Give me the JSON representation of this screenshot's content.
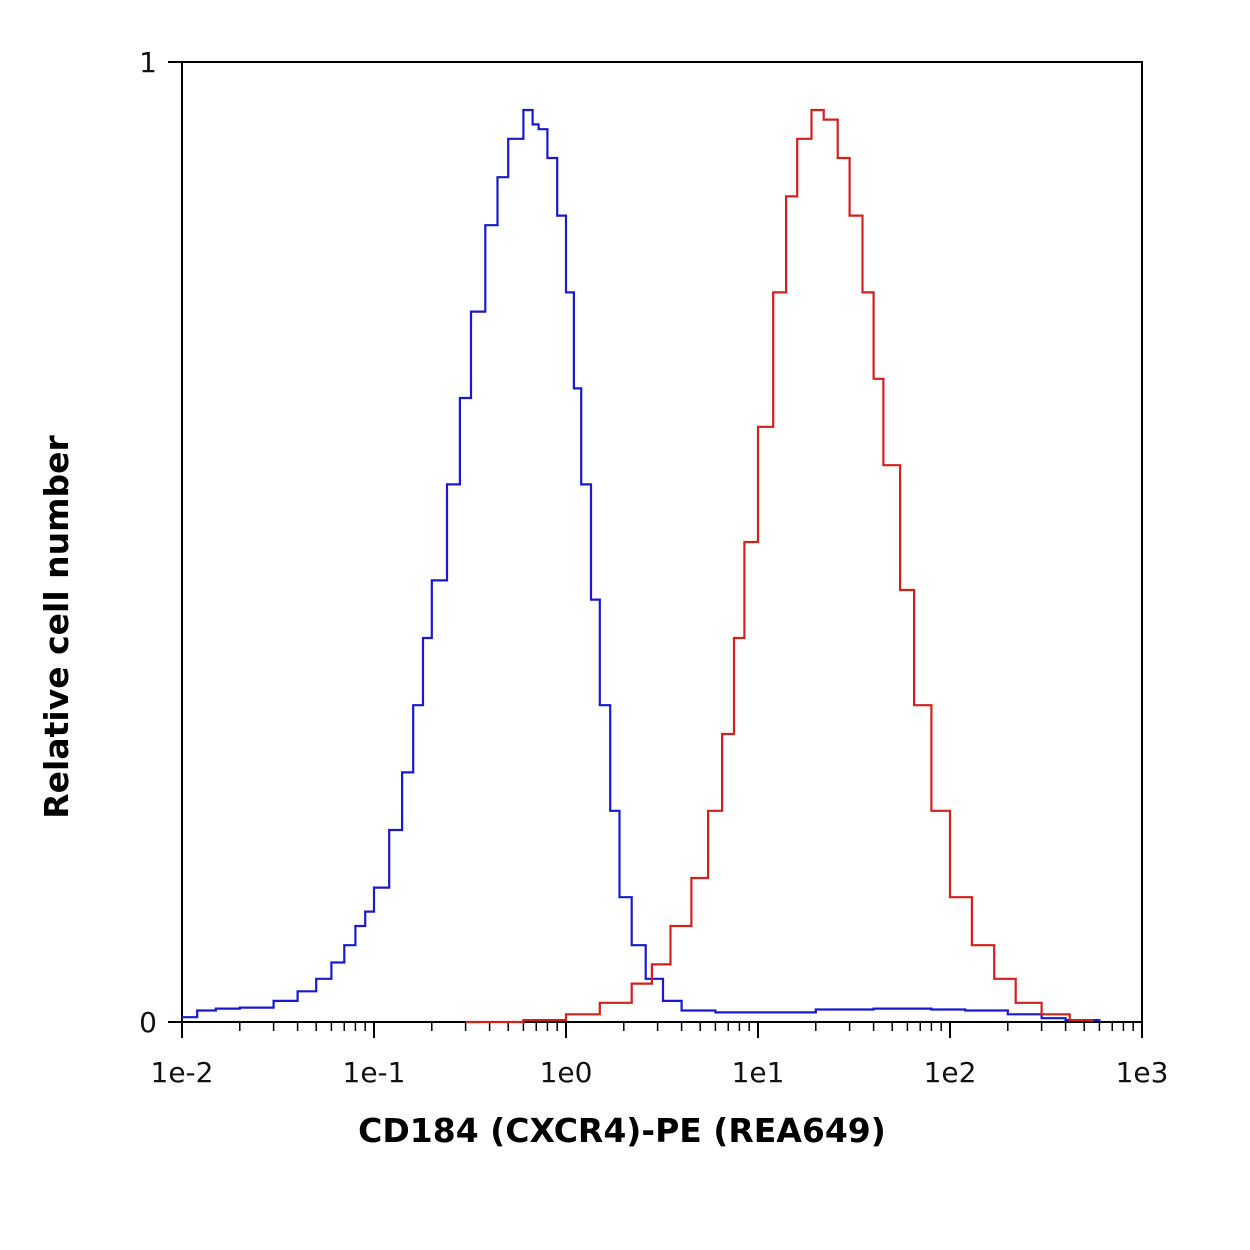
{
  "chart_data": {
    "type": "line",
    "title": "",
    "xlabel": "CD184 (CXCR4)-PE (REA649)",
    "ylabel": "Relative cell number",
    "x_scale": "log",
    "xlim": [
      0.01,
      1000
    ],
    "ylim": [
      0,
      1
    ],
    "x_ticks": [
      {
        "value": 0.01,
        "label": "1e-2"
      },
      {
        "value": 0.1,
        "label": "1e-1"
      },
      {
        "value": 1,
        "label": "1e0"
      },
      {
        "value": 10,
        "label": "1e1"
      },
      {
        "value": 100,
        "label": "1e2"
      },
      {
        "value": 1000,
        "label": "1e3"
      }
    ],
    "y_ticks": [
      {
        "value": 0,
        "label": "0"
      },
      {
        "value": 1,
        "label": "1"
      }
    ],
    "grid": false,
    "legend": "none",
    "series": [
      {
        "color": "#1a1acc",
        "points": [
          [
            0.01,
            0.005
          ],
          [
            0.012,
            0.012
          ],
          [
            0.015,
            0.014
          ],
          [
            0.02,
            0.015
          ],
          [
            0.03,
            0.022
          ],
          [
            0.04,
            0.032
          ],
          [
            0.05,
            0.045
          ],
          [
            0.06,
            0.062
          ],
          [
            0.07,
            0.08
          ],
          [
            0.08,
            0.1
          ],
          [
            0.09,
            0.115
          ],
          [
            0.1,
            0.14
          ],
          [
            0.12,
            0.2
          ],
          [
            0.14,
            0.26
          ],
          [
            0.16,
            0.33
          ],
          [
            0.18,
            0.4
          ],
          [
            0.2,
            0.46
          ],
          [
            0.24,
            0.56
          ],
          [
            0.28,
            0.65
          ],
          [
            0.32,
            0.74
          ],
          [
            0.38,
            0.83
          ],
          [
            0.44,
            0.88
          ],
          [
            0.5,
            0.92
          ],
          [
            0.6,
            0.95
          ],
          [
            0.67,
            0.935
          ],
          [
            0.72,
            0.93
          ],
          [
            0.8,
            0.9
          ],
          [
            0.9,
            0.84
          ],
          [
            1.0,
            0.76
          ],
          [
            1.1,
            0.66
          ],
          [
            1.2,
            0.56
          ],
          [
            1.35,
            0.44
          ],
          [
            1.5,
            0.33
          ],
          [
            1.7,
            0.22
          ],
          [
            1.9,
            0.13
          ],
          [
            2.2,
            0.08
          ],
          [
            2.6,
            0.045
          ],
          [
            3.2,
            0.022
          ],
          [
            4.0,
            0.012
          ],
          [
            6.0,
            0.01
          ],
          [
            10.0,
            0.01
          ],
          [
            20.0,
            0.013
          ],
          [
            40.0,
            0.014
          ],
          [
            80.0,
            0.013
          ],
          [
            120.0,
            0.012
          ],
          [
            200.0,
            0.008
          ],
          [
            300.0,
            0.004
          ],
          [
            400.0,
            0.002
          ],
          [
            600.0,
            0.0
          ]
        ]
      },
      {
        "color": "#d41f1f",
        "points": [
          [
            0.3,
            0.0
          ],
          [
            0.6,
            0.002
          ],
          [
            1.0,
            0.008
          ],
          [
            1.5,
            0.02
          ],
          [
            2.2,
            0.04
          ],
          [
            2.8,
            0.06
          ],
          [
            3.5,
            0.1
          ],
          [
            4.5,
            0.15
          ],
          [
            5.5,
            0.22
          ],
          [
            6.5,
            0.3
          ],
          [
            7.5,
            0.4
          ],
          [
            8.5,
            0.5
          ],
          [
            10.0,
            0.62
          ],
          [
            12.0,
            0.76
          ],
          [
            14.0,
            0.86
          ],
          [
            16.0,
            0.92
          ],
          [
            19.0,
            0.95
          ],
          [
            22.0,
            0.94
          ],
          [
            26.0,
            0.9
          ],
          [
            30.0,
            0.84
          ],
          [
            35.0,
            0.76
          ],
          [
            40.0,
            0.67
          ],
          [
            45.0,
            0.58
          ],
          [
            55.0,
            0.45
          ],
          [
            65.0,
            0.33
          ],
          [
            80.0,
            0.22
          ],
          [
            100.0,
            0.13
          ],
          [
            130.0,
            0.08
          ],
          [
            170.0,
            0.045
          ],
          [
            220.0,
            0.02
          ],
          [
            300.0,
            0.008
          ],
          [
            420.0,
            0.002
          ],
          [
            550.0,
            0.0
          ]
        ]
      }
    ]
  }
}
